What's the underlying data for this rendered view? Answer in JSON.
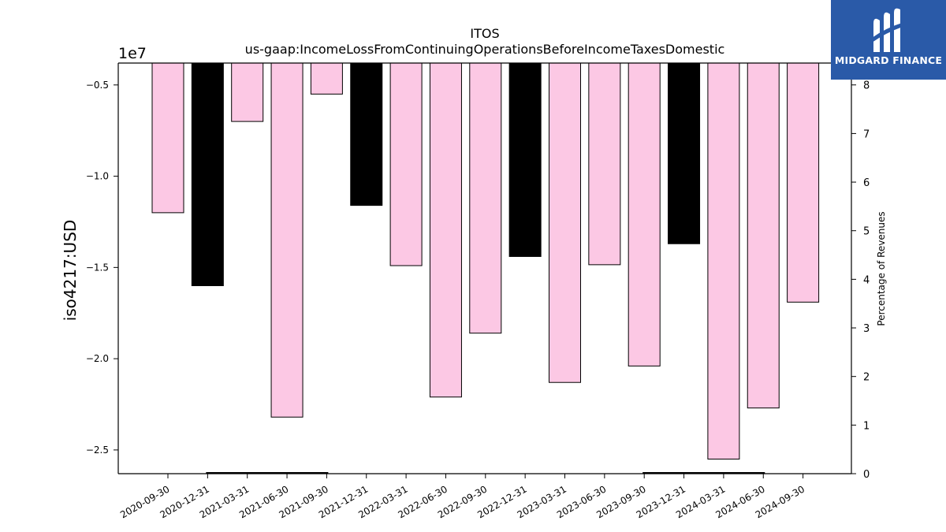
{
  "chart_data": {
    "type": "bar",
    "title": "ITOS",
    "subtitle": "us-gaap:IncomeLossFromContinuingOperationsBeforeIncomeTaxesDomestic",
    "ylabel": "iso4217:USD",
    "y_offset_label": "1e7",
    "y2label": "Percentage of Revenues",
    "categories": [
      "2020-09-30",
      "2020-12-31",
      "2021-03-31",
      "2021-06-30",
      "2021-09-30",
      "2021-12-31",
      "2022-03-31",
      "2022-06-30",
      "2022-09-30",
      "2022-12-31",
      "2023-03-31",
      "2023-06-30",
      "2023-09-30",
      "2023-12-31",
      "2024-03-31",
      "2024-06-30",
      "2024-09-30"
    ],
    "values": [
      -12000000,
      -16000000,
      -7000000,
      -23200000,
      -5500000,
      -11600000,
      -14900000,
      -22100000,
      -18600000,
      -14400000,
      -21300000,
      -14850000,
      -20400000,
      -13700000,
      -25500000,
      -22700000,
      -16900000
    ],
    "bar_colors": [
      "#fcc8e4",
      "#000000",
      "#fcc8e4",
      "#fcc8e4",
      "#fcc8e4",
      "#000000",
      "#fcc8e4",
      "#fcc8e4",
      "#fcc8e4",
      "#000000",
      "#fcc8e4",
      "#fcc8e4",
      "#fcc8e4",
      "#000000",
      "#fcc8e4",
      "#fcc8e4",
      "#fcc8e4"
    ],
    "ylim": [
      -26300000,
      -3800000
    ],
    "yticks": [
      -5000000,
      -10000000,
      -15000000,
      -20000000,
      -25000000
    ],
    "ytick_labels": [
      "−0.5",
      "−1.0",
      "−1.5",
      "−2.0",
      "−2.5"
    ],
    "y2lim": [
      0,
      8.45
    ],
    "y2ticks": [
      0,
      1,
      2,
      3,
      4,
      5,
      6,
      7,
      8
    ],
    "y2tick_labels": [
      "0",
      "1",
      "2",
      "3",
      "4",
      "5",
      "6",
      "7",
      "8"
    ],
    "pct_series": [
      {
        "from_index": 1,
        "to_index": 4,
        "value": 0.0
      },
      {
        "from_index": 12,
        "to_index": 15,
        "value": 0.0
      }
    ],
    "grid": false
  },
  "logo": {
    "text": "MIDGARD FINANCE",
    "color": "#2a5aa8"
  }
}
